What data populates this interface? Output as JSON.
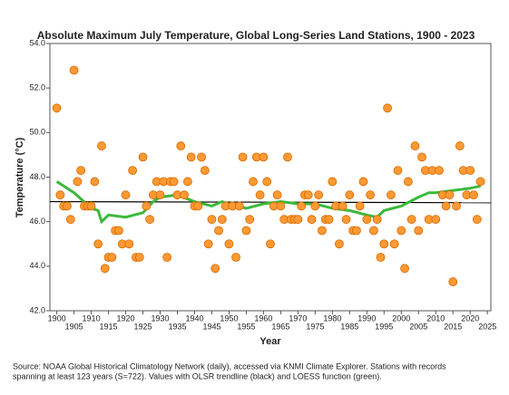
{
  "chart_data": {
    "type": "scatter",
    "title": "Absolute Maximum July Temperature, Global Long-Series Land Stations, 1900 - 2023",
    "xlabel": "Year",
    "ylabel": "Temperature (°C)",
    "source": [
      "Source: NOAA Global Historical Climatology Network (daily), accessed via KNMI Climate Explorer. Stations with records",
      "spanning at least 123 years (S=722). Values with OLSR trendline (black) and LOESS function (green)."
    ],
    "xlim": [
      1898,
      2026
    ],
    "xticks": [
      1900,
      1905,
      1910,
      1915,
      1920,
      1925,
      1930,
      1935,
      1940,
      1945,
      1950,
      1955,
      1960,
      1965,
      1970,
      1975,
      1980,
      1985,
      1990,
      1995,
      2000,
      2005,
      2010,
      2015,
      2020,
      2025
    ],
    "ylim": [
      42,
      54
    ],
    "yticks": [
      {
        "value": 42,
        "label": "42.0"
      },
      {
        "value": 44,
        "label": "44.0"
      },
      {
        "value": 46,
        "label": "46.0"
      },
      {
        "value": 48,
        "label": "48.0"
      },
      {
        "value": 50,
        "label": "50.0"
      },
      {
        "value": 52,
        "label": "52.0"
      },
      {
        "value": 54,
        "label": "54.0"
      }
    ],
    "x": [
      1900,
      1901,
      1902,
      1903,
      1904,
      1905,
      1906,
      1907,
      1908,
      1909,
      1910,
      1911,
      1912,
      1913,
      1914,
      1915,
      1916,
      1917,
      1918,
      1919,
      1920,
      1921,
      1922,
      1923,
      1924,
      1925,
      1926,
      1927,
      1928,
      1929,
      1930,
      1931,
      1932,
      1933,
      1934,
      1935,
      1936,
      1937,
      1938,
      1939,
      1940,
      1941,
      1942,
      1943,
      1944,
      1945,
      1946,
      1947,
      1948,
      1949,
      1950,
      1951,
      1952,
      1953,
      1954,
      1955,
      1956,
      1957,
      1958,
      1959,
      1960,
      1961,
      1962,
      1963,
      1964,
      1965,
      1966,
      1967,
      1968,
      1969,
      1970,
      1971,
      1972,
      1973,
      1974,
      1975,
      1976,
      1977,
      1978,
      1979,
      1980,
      1981,
      1982,
      1983,
      1984,
      1985,
      1986,
      1987,
      1988,
      1989,
      1990,
      1991,
      1992,
      1993,
      1994,
      1995,
      1996,
      1997,
      1998,
      1999,
      2000,
      2001,
      2002,
      2003,
      2004,
      2005,
      2006,
      2007,
      2008,
      2009,
      2010,
      2011,
      2012,
      2013,
      2014,
      2015,
      2016,
      2017,
      2018,
      2019,
      2020,
      2021,
      2022,
      2023
    ],
    "series": [
      {
        "color": "#ff9933",
        "values": [
          51.1,
          47.2,
          46.7,
          46.7,
          46.1,
          52.8,
          47.8,
          48.3,
          46.7,
          46.7,
          46.7,
          47.8,
          45.0,
          49.4,
          43.9,
          44.4,
          44.4,
          45.6,
          45.6,
          45.0,
          47.2,
          45.0,
          48.3,
          44.4,
          44.4,
          48.9,
          46.7,
          46.1,
          47.2,
          47.8,
          47.2,
          47.8,
          44.4,
          47.8,
          47.8,
          47.2,
          49.4,
          47.2,
          47.8,
          48.9,
          46.7,
          46.7,
          48.9,
          48.3,
          45.0,
          46.1,
          43.9,
          45.6,
          46.1,
          46.7,
          45.0,
          46.7,
          44.4,
          46.7,
          48.9,
          45.6,
          46.1,
          47.8,
          48.9,
          47.2,
          48.9,
          47.8,
          45.0,
          46.7,
          47.2,
          46.7,
          46.1,
          48.9,
          46.1,
          46.1,
          46.1,
          46.7,
          47.2,
          47.2,
          46.1,
          46.7,
          47.2,
          45.6,
          46.1,
          46.1,
          47.8,
          46.7,
          45.0,
          46.7,
          46.1,
          47.2,
          45.6,
          45.6,
          46.7,
          47.8,
          46.1,
          47.2,
          45.6,
          46.1,
          44.4,
          45.0,
          51.1,
          47.2,
          45.0,
          48.3,
          45.6,
          43.9,
          47.8,
          46.1,
          49.4,
          45.6,
          48.9,
          48.3,
          46.1,
          48.3,
          46.1,
          48.3,
          47.2,
          46.7,
          47.2,
          43.3,
          46.7,
          49.4,
          48.3,
          47.2,
          48.3,
          47.2,
          46.1,
          47.8
        ]
      },
      {
        "type": "line",
        "color": "#000000",
        "x": [
          1898,
          2026
        ],
        "values": [
          46.9,
          46.85
        ]
      },
      {
        "type": "line",
        "color": "#3cb93c",
        "x": [
          1900,
          1905,
          1910,
          1912,
          1913,
          1915,
          1920,
          1925,
          1928,
          1930,
          1935,
          1940,
          1945,
          1948,
          1950,
          1955,
          1960,
          1965,
          1970,
          1975,
          1980,
          1985,
          1990,
          1993,
          1995,
          2000,
          2005,
          2008,
          2010,
          2015,
          2020,
          2023
        ],
        "values": [
          47.8,
          47.3,
          46.6,
          46.5,
          46.0,
          46.3,
          46.2,
          46.4,
          46.9,
          47.1,
          47.2,
          46.9,
          46.7,
          46.9,
          46.8,
          46.6,
          46.8,
          46.9,
          46.8,
          46.8,
          46.6,
          46.5,
          46.3,
          46.2,
          46.5,
          46.7,
          47.1,
          47.3,
          47.3,
          47.4,
          47.5,
          47.6
        ]
      }
    ]
  }
}
